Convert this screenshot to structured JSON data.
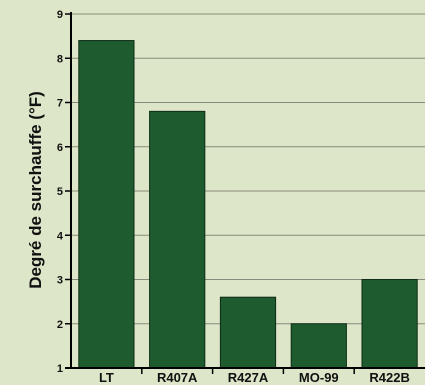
{
  "chart_data": {
    "type": "bar",
    "ylabel": "Degré de surchauffe (°F)",
    "xlabel": "",
    "title": "",
    "categories": [
      "LT",
      "R407A",
      "R427A",
      "MO-99",
      "R422B"
    ],
    "values": [
      8.4,
      6.8,
      2.6,
      2.0,
      3.0
    ],
    "ylim": [
      1,
      9
    ],
    "yticks": [
      1,
      2,
      3,
      4,
      5,
      6,
      7,
      8,
      9
    ],
    "grid": true,
    "legend": "none"
  },
  "colors": {
    "background": "#dde6c8",
    "bar_fill": "#1e5b2e",
    "bar_stroke": "#0f2e17",
    "grid": "#8a8a7a",
    "axis": "#000000"
  }
}
